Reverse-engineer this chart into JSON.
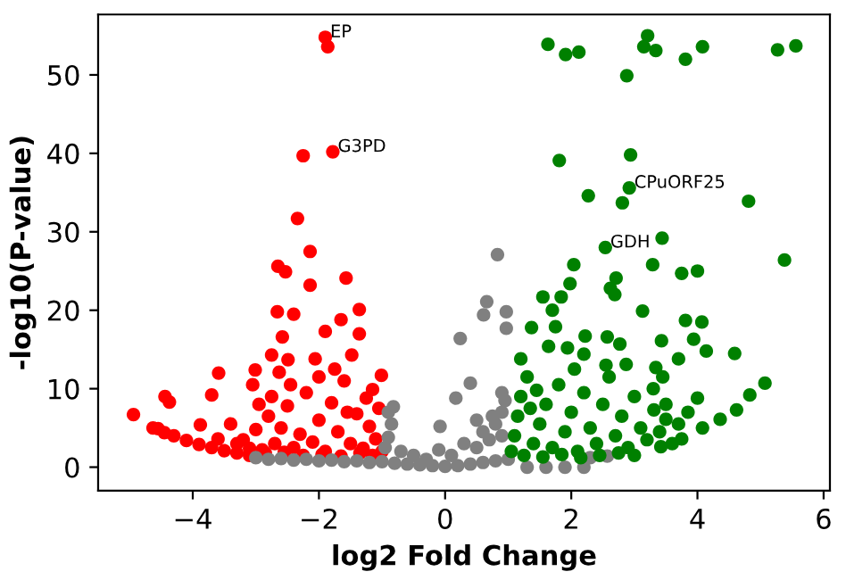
{
  "chart_data": {
    "type": "scatter",
    "xlabel": "log2 Fold Change",
    "ylabel": "-log10(P-value)",
    "xlim": [
      -5.5,
      6.1
    ],
    "ylim": [
      -3,
      57.7
    ],
    "xticks": [
      {
        "value": -4,
        "label": "−4"
      },
      {
        "value": -2,
        "label": "−2"
      },
      0,
      2,
      4,
      6
    ],
    "yticks": [
      0,
      10,
      20,
      30,
      40,
      50
    ],
    "marker": "circle",
    "annotations": [
      {
        "text": "EP",
        "x": -1.9,
        "y": 54.8
      },
      {
        "text": "G3PD",
        "x": -1.78,
        "y": 40.2
      },
      {
        "text": "CPuORF25",
        "x": 2.92,
        "y": 35.6
      },
      {
        "text": "GDH",
        "x": 2.54,
        "y": 28.0
      }
    ],
    "series": [
      {
        "color": "#ff0000",
        "x": [
          -1.9,
          -1.86,
          -1.78,
          -2.25,
          -2.34,
          -2.14,
          -2.65,
          -2.53,
          -1.57,
          -2.14,
          -2.66,
          -2.4,
          -1.36,
          -1.9,
          -1.65,
          -1.36,
          -2.58,
          -2.75,
          -2.49,
          -2.06,
          -1.48,
          -3.59,
          -3.01,
          -1.01,
          -2.63,
          -3.7,
          -3.05,
          -4.44,
          -4.37,
          -1.15,
          -4.94,
          -4.63,
          -4.55,
          -3.88,
          -4.3,
          -4.1,
          -3.9,
          -3.7,
          -3.5,
          -3.3,
          -3.1,
          -4.45,
          -3.2,
          -3.0,
          -2.9,
          -2.8,
          -2.7,
          -2.6,
          -2.5,
          -2.4,
          -2.3,
          -2.2,
          -2.1,
          -2.0,
          -1.9,
          -1.8,
          -1.7,
          -1.6,
          -1.5,
          -1.4,
          -1.3,
          -1.2,
          -1.1,
          -1.05,
          -1.0,
          -3.3,
          -3.1,
          -2.95,
          -2.75,
          -2.45,
          -2.0,
          -1.75,
          -1.55,
          -1.25,
          -3.6,
          -3.4,
          -2.85,
          -2.55,
          -2.25,
          -1.95,
          -1.65,
          -1.35,
          -1.15
        ],
        "values": [
          54.8,
          53.6,
          40.2,
          39.7,
          31.7,
          27.5,
          25.6,
          24.9,
          24.1,
          23.2,
          19.8,
          19.5,
          20.1,
          17.3,
          18.8,
          17.0,
          16.6,
          14.3,
          13.7,
          13.8,
          14.3,
          12.0,
          12.4,
          11.7,
          12.1,
          9.2,
          10.5,
          9.0,
          8.3,
          9.9,
          6.7,
          5.0,
          4.9,
          5.4,
          4.0,
          3.4,
          2.9,
          2.5,
          2.1,
          1.8,
          1.5,
          4.4,
          3.5,
          4.8,
          2.2,
          6.5,
          3.0,
          5.0,
          7.8,
          2.5,
          4.2,
          9.5,
          3.2,
          6.0,
          2.0,
          8.2,
          4.5,
          11.0,
          3.0,
          6.8,
          2.4,
          5.2,
          3.6,
          7.5,
          2.0,
          3.0,
          2.4,
          8.0,
          9.0,
          10.5,
          11.5,
          12.5,
          7.0,
          8.8,
          3.6,
          5.5,
          1.8,
          1.9,
          1.5,
          1.6,
          1.4,
          1.8,
          1.5
        ]
      },
      {
        "color": "#808080",
        "x": [
          -3.0,
          -2.8,
          -2.6,
          -2.4,
          -2.2,
          -2.0,
          -1.8,
          -1.6,
          -1.4,
          -1.2,
          -1.0,
          -0.8,
          -0.6,
          -0.4,
          -0.2,
          0.0,
          0.2,
          0.4,
          0.6,
          0.8,
          1.0,
          1.3,
          1.6,
          1.9,
          2.2,
          2.3,
          2.57,
          -0.95,
          -0.9,
          -0.85,
          -0.82,
          -0.9,
          -0.7,
          -0.5,
          -0.3,
          -0.1,
          0.1,
          0.3,
          0.5,
          0.6,
          0.7,
          0.8,
          0.9,
          0.95,
          0.75,
          0.9,
          0.5,
          -0.08,
          0.17,
          0.4,
          0.24,
          0.61,
          0.66,
          0.97,
          0.97,
          0.83,
          0.9
        ],
        "values": [
          1.2,
          1.0,
          1.1,
          0.9,
          1.0,
          0.8,
          0.9,
          0.7,
          0.8,
          0.6,
          0.7,
          0.5,
          0.4,
          0.3,
          0.2,
          0.1,
          0.2,
          0.4,
          0.6,
          0.8,
          1.0,
          0.0,
          0.0,
          0.0,
          0.0,
          1.2,
          1.4,
          2.5,
          3.8,
          5.5,
          7.7,
          7.0,
          2.0,
          1.5,
          1.0,
          2.2,
          1.5,
          3.0,
          2.5,
          4.5,
          3.5,
          5.5,
          7.0,
          8.5,
          6.5,
          4.0,
          6.0,
          5.2,
          8.8,
          10.7,
          16.4,
          19.4,
          21.1,
          19.8,
          17.7,
          27.1,
          9.5
        ]
      },
      {
        "color": "#008000",
        "x": [
          1.63,
          1.91,
          2.12,
          3.21,
          3.15,
          3.34,
          3.81,
          4.08,
          2.88,
          5.27,
          5.56,
          1.81,
          2.94,
          2.92,
          2.27,
          2.81,
          4.81,
          3.44,
          2.54,
          5.38,
          2.04,
          3.29,
          3.75,
          4.0,
          1.98,
          2.71,
          2.62,
          2.69,
          1.55,
          1.84,
          1.7,
          3.13,
          1.37,
          1.75,
          2.22,
          2.57,
          2.77,
          3.43,
          3.81,
          4.07,
          3.94,
          4.14,
          4.59,
          3.7,
          1.64,
          1.94,
          2.2,
          2.87,
          3.34,
          3.45,
          1.2,
          5.07,
          4.83,
          4.62,
          4.36,
          4.08,
          3.75,
          3.42,
          3.0,
          4.0,
          3.31,
          3.5,
          1.05,
          1.1,
          1.15,
          1.2,
          1.3,
          1.4,
          1.5,
          1.6,
          1.7,
          1.8,
          1.9,
          2.0,
          2.1,
          2.2,
          2.3,
          2.4,
          2.5,
          2.6,
          2.7,
          2.8,
          2.9,
          3.0,
          3.1,
          3.2,
          3.3,
          3.4,
          3.5,
          3.6,
          1.25,
          1.55,
          1.85,
          2.15,
          2.45,
          2.75,
          3.7,
          3.85,
          1.35,
          2.05,
          2.55,
          1.45
        ],
        "values": [
          53.9,
          52.6,
          52.9,
          55.0,
          53.6,
          53.1,
          52.0,
          53.6,
          49.9,
          53.2,
          53.7,
          39.1,
          39.8,
          35.6,
          34.6,
          33.7,
          33.9,
          29.2,
          28.0,
          26.4,
          25.8,
          25.8,
          24.7,
          25.0,
          23.4,
          24.1,
          22.8,
          22.0,
          21.7,
          21.7,
          20.0,
          19.9,
          17.8,
          17.9,
          16.7,
          16.6,
          15.7,
          16.1,
          18.7,
          18.5,
          16.3,
          14.8,
          14.5,
          13.8,
          15.4,
          15.2,
          14.4,
          13.1,
          12.7,
          11.5,
          13.8,
          10.7,
          9.2,
          7.3,
          6.1,
          5.0,
          3.6,
          2.6,
          1.5,
          8.8,
          7.3,
          6.1,
          2.0,
          4.0,
          6.5,
          9.0,
          11.5,
          3.0,
          5.5,
          8.0,
          2.5,
          10.5,
          4.5,
          7.0,
          2.0,
          9.5,
          5.0,
          3.0,
          8.0,
          11.5,
          4.0,
          6.5,
          2.5,
          9.0,
          5.0,
          3.5,
          10.0,
          4.5,
          8.0,
          3.0,
          1.5,
          1.3,
          1.6,
          1.2,
          1.5,
          1.8,
          5.5,
          7.0,
          7.5,
          12.5,
          13.0,
          9.8
        ]
      }
    ]
  }
}
